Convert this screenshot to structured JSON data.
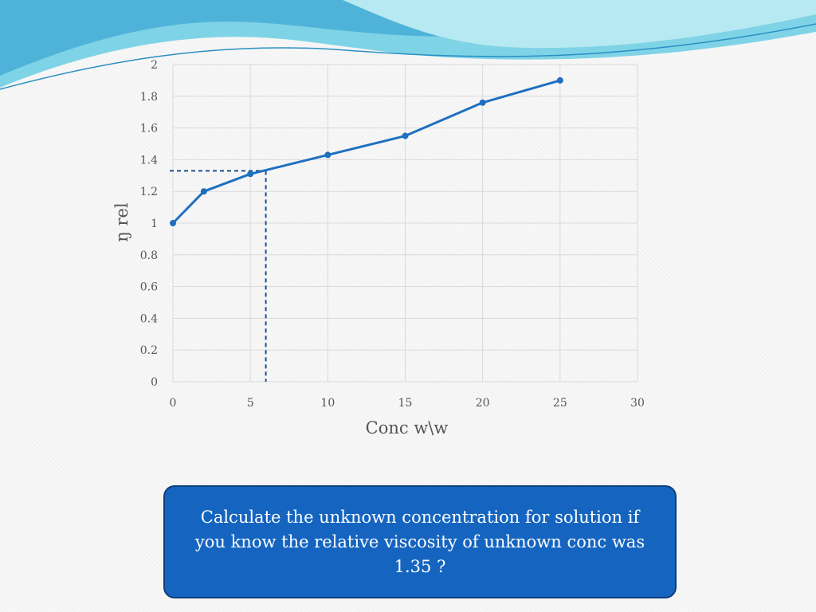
{
  "theme": {
    "line_color": "#1f6fbf",
    "guide_color": "#1b4f8c",
    "box_color": "#1565c0",
    "wave_colors": [
      "#4fb3d9",
      "#7fd3e6",
      "#b7e9f2",
      "#2a8fc4"
    ]
  },
  "chart_data": {
    "type": "line",
    "title": "",
    "xlabel": "Conc w\\w",
    "ylabel": "ŋ rel",
    "xlim": [
      0,
      30
    ],
    "ylim": [
      0,
      2
    ],
    "x_ticks": [
      0,
      5,
      10,
      15,
      20,
      25,
      30
    ],
    "y_ticks": [
      0,
      0.2,
      0.4,
      0.6,
      0.8,
      1,
      1.2,
      1.4,
      1.6,
      1.8,
      2
    ],
    "grid": true,
    "legend": "none",
    "series": [
      {
        "x": [
          0,
          2,
          5,
          10,
          15,
          20,
          25
        ],
        "y": [
          1.0,
          1.2,
          1.31,
          1.43,
          1.55,
          1.76,
          1.9
        ]
      }
    ],
    "annotations": {
      "guide_point": {
        "x": 6,
        "y": 1.33
      }
    }
  },
  "question": {
    "text": "Calculate the  unknown concentration  for solution if\nyou know the relative viscosity  of unknown conc was\n1.35 ?"
  }
}
